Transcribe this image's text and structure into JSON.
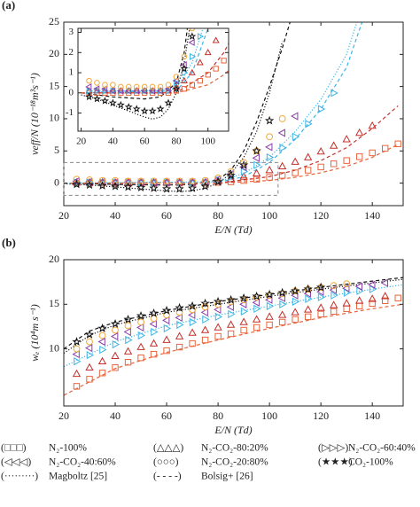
{
  "chart_data": [
    {
      "type": "scatter",
      "panel_label": "(a)",
      "xlabel": "E/N (Td)",
      "ylabel": "νeff/N (10⁻¹⁸m³s⁻¹)",
      "xlim": [
        20,
        152
      ],
      "ylim": [
        -3.5,
        25
      ],
      "xticks": [
        20,
        40,
        60,
        80,
        100,
        120,
        140
      ],
      "yticks": [
        0,
        5,
        10,
        15,
        20,
        25
      ],
      "series": [
        {
          "marker": "square",
          "color": "#e8643c",
          "x": [
            25,
            30,
            35,
            40,
            45,
            50,
            55,
            60,
            65,
            70,
            75,
            80,
            85,
            90,
            95,
            100,
            105,
            110,
            115,
            120,
            125,
            130,
            135,
            140,
            145,
            150
          ],
          "values": [
            0,
            0,
            0,
            0,
            0,
            0,
            0,
            0,
            0,
            0,
            0,
            0.1,
            0.2,
            0.4,
            0.6,
            0.9,
            1.2,
            1.6,
            2.0,
            2.5,
            3.0,
            3.5,
            4.1,
            4.7,
            5.4,
            6.1
          ]
        },
        {
          "marker": "triangle-up",
          "color": "#c4302b",
          "x": [
            25,
            30,
            35,
            40,
            45,
            50,
            55,
            60,
            65,
            70,
            75,
            80,
            85,
            90,
            95,
            100,
            105,
            110,
            115,
            120,
            125,
            130,
            135,
            140
          ],
          "values": [
            0.1,
            0.1,
            0.1,
            0.1,
            0.1,
            0.1,
            0.1,
            0.1,
            0.1,
            0.1,
            0.1,
            0.3,
            0.6,
            1.0,
            1.5,
            2.0,
            2.6,
            3.3,
            4.0,
            4.9,
            5.8,
            6.8,
            7.8,
            8.9
          ]
        },
        {
          "marker": "triangle-right",
          "color": "#3db5e6",
          "x": [
            25,
            30,
            35,
            40,
            45,
            50,
            55,
            60,
            65,
            70,
            75,
            80,
            85,
            90,
            95,
            100,
            105,
            110,
            115,
            120,
            125
          ],
          "values": [
            0.1,
            0.1,
            0.1,
            0.1,
            0.1,
            0.1,
            0.1,
            0.1,
            0.1,
            0.1,
            0.1,
            0.5,
            1.0,
            1.8,
            2.8,
            4.0,
            5.5,
            7.2,
            9.2,
            11.5,
            14.0
          ]
        },
        {
          "marker": "triangle-left",
          "color": "#8a3fa8",
          "x": [
            25,
            30,
            35,
            40,
            45,
            50,
            55,
            60,
            65,
            70,
            75,
            80,
            85,
            90,
            95,
            100,
            105,
            110
          ],
          "values": [
            0.3,
            0.2,
            0.2,
            0.1,
            0.1,
            0.1,
            0.1,
            0.1,
            0.1,
            0.1,
            0.2,
            0.6,
            1.4,
            2.5,
            3.9,
            5.6,
            7.8,
            10.4
          ]
        },
        {
          "marker": "circle",
          "color": "#f2a93b",
          "x": [
            25,
            30,
            35,
            40,
            45,
            50,
            55,
            60,
            65,
            70,
            75,
            80,
            85,
            90,
            95,
            100,
            105
          ],
          "values": [
            0.6,
            0.5,
            0.4,
            0.4,
            0.3,
            0.3,
            0.3,
            0.3,
            0.3,
            0.3,
            0.4,
            0.8,
            1.8,
            3.2,
            5.0,
            7.2,
            10.0
          ]
        },
        {
          "marker": "star",
          "color": "#111111",
          "x": [
            25,
            30,
            35,
            40,
            45,
            50,
            55,
            60,
            65,
            70,
            75,
            80,
            85,
            90,
            95,
            100
          ],
          "values": [
            -0.2,
            -0.3,
            -0.4,
            -0.5,
            -0.6,
            -0.7,
            -0.8,
            -0.9,
            -0.9,
            -0.8,
            -0.5,
            0.2,
            1.2,
            2.8,
            5.0,
            9.7
          ]
        }
      ],
      "curves": [
        {
          "style": "dotted",
          "color": "#111111",
          "x": [
            20,
            30,
            40,
            50,
            60,
            65,
            70,
            75,
            80,
            85,
            90,
            95,
            100,
            105
          ],
          "values": [
            -0.1,
            -0.3,
            -0.6,
            -0.9,
            -1.2,
            -1.3,
            -1.2,
            -0.8,
            0,
            1.5,
            4,
            8,
            14,
            22
          ]
        },
        {
          "style": "dashed",
          "color": "#111111",
          "x": [
            20,
            40,
            60,
            70,
            80,
            85,
            90,
            95,
            100,
            105,
            108
          ],
          "values": [
            0,
            -0.2,
            -0.3,
            -0.2,
            0.5,
            2,
            5,
            9.5,
            15,
            21,
            25
          ]
        },
        {
          "style": "dotted",
          "color": "#3db5e6",
          "x": [
            20,
            80,
            90,
            100,
            110,
            120,
            130,
            134
          ],
          "values": [
            0,
            0.2,
            1.5,
            4,
            8,
            13,
            20,
            25
          ]
        },
        {
          "style": "dashed",
          "color": "#3db5e6",
          "x": [
            20,
            80,
            90,
            100,
            110,
            120,
            130,
            136
          ],
          "values": [
            0,
            0.1,
            1,
            3.2,
            6.8,
            11.5,
            18,
            25
          ]
        },
        {
          "style": "dashed",
          "color": "#c4302b",
          "x": [
            20,
            80,
            100,
            110,
            120,
            130,
            140,
            150
          ],
          "values": [
            0,
            0,
            1.0,
            2,
            3.5,
            5.5,
            8.5,
            12
          ]
        },
        {
          "style": "dashed",
          "color": "#e8643c",
          "x": [
            20,
            80,
            100,
            110,
            120,
            130,
            140,
            150
          ],
          "values": [
            0,
            0,
            0.4,
            0.9,
            1.6,
            2.6,
            4,
            6
          ]
        }
      ]
    },
    {
      "type": "scatter",
      "panel_label": "(b)",
      "xlabel": "E/N (Td)",
      "ylabel": "wₑ (10⁴m s⁻¹)",
      "xlim": [
        20,
        152
      ],
      "ylim": [
        3.6,
        20
      ],
      "xticks": [
        20,
        40,
        60,
        80,
        100,
        120,
        140
      ],
      "yticks": [
        10,
        15,
        20
      ],
      "series": [
        {
          "marker": "square",
          "color": "#e8643c",
          "x": [
            25,
            30,
            35,
            40,
            45,
            50,
            55,
            60,
            65,
            70,
            75,
            80,
            85,
            90,
            95,
            100,
            105,
            110,
            115,
            120,
            125,
            130,
            135,
            140,
            145,
            150
          ],
          "values": [
            5.8,
            6.6,
            7.3,
            7.9,
            8.5,
            9.0,
            9.4,
            9.8,
            10.2,
            10.6,
            11.0,
            11.4,
            11.7,
            12.1,
            12.4,
            12.7,
            13.0,
            13.3,
            13.6,
            13.9,
            14.2,
            14.5,
            14.8,
            15.1,
            15.4,
            15.7
          ]
        },
        {
          "marker": "triangle-up",
          "color": "#c4302b",
          "x": [
            25,
            30,
            35,
            40,
            45,
            50,
            55,
            60,
            65,
            70,
            75,
            80,
            85,
            90,
            95,
            100,
            105,
            110,
            115,
            120,
            125,
            130,
            135,
            140,
            145
          ],
          "values": [
            7.2,
            7.9,
            8.6,
            9.2,
            9.7,
            10.2,
            10.6,
            11.0,
            11.4,
            11.8,
            12.1,
            12.4,
            12.7,
            13.0,
            13.3,
            13.6,
            13.8,
            14.1,
            14.4,
            14.6,
            14.9,
            15.1,
            15.4,
            15.6,
            15.9
          ]
        },
        {
          "marker": "triangle-right",
          "color": "#3db5e6",
          "x": [
            25,
            30,
            35,
            40,
            45,
            50,
            55,
            60,
            65,
            70,
            75,
            80,
            85,
            90,
            95,
            100,
            105,
            110,
            115,
            120,
            125,
            130,
            135,
            140
          ],
          "values": [
            8.6,
            9.3,
            9.9,
            10.5,
            11.0,
            11.5,
            11.9,
            12.3,
            12.7,
            13.0,
            13.3,
            13.6,
            13.9,
            14.2,
            14.5,
            14.8,
            15.0,
            15.3,
            15.6,
            15.8,
            16.0,
            16.3,
            16.5,
            16.7
          ]
        },
        {
          "marker": "triangle-left",
          "color": "#8a3fa8",
          "x": [
            25,
            30,
            35,
            40,
            45,
            50,
            55,
            60,
            65,
            70,
            75,
            80,
            85,
            90,
            95,
            100,
            105,
            110,
            115,
            120,
            125,
            130,
            135,
            140,
            145
          ],
          "values": [
            9.4,
            10.1,
            10.8,
            11.4,
            11.9,
            12.4,
            12.8,
            13.2,
            13.5,
            13.8,
            14.1,
            14.4,
            14.7,
            15.0,
            15.2,
            15.5,
            15.7,
            16.0,
            16.2,
            16.4,
            16.6,
            16.8,
            17.0,
            17.2,
            17.4
          ]
        },
        {
          "marker": "circle",
          "color": "#f2a93b",
          "x": [
            25,
            30,
            35,
            40,
            45,
            50,
            55,
            60,
            65,
            70,
            75,
            80,
            85,
            90,
            95,
            100,
            105,
            110,
            115,
            120,
            125,
            130
          ],
          "values": [
            10.0,
            10.8,
            11.5,
            12.1,
            12.6,
            13.0,
            13.4,
            13.8,
            14.1,
            14.4,
            14.7,
            15.0,
            15.3,
            15.5,
            15.8,
            16.0,
            16.2,
            16.5,
            16.7,
            16.9,
            17.1,
            17.3
          ]
        },
        {
          "marker": "star",
          "color": "#111111",
          "x": [
            25,
            30,
            35,
            40,
            45,
            50,
            55,
            60,
            65,
            70,
            75,
            80,
            85,
            90,
            95,
            100,
            105,
            110,
            115,
            120
          ],
          "values": [
            10.8,
            11.6,
            12.3,
            12.8,
            13.3,
            13.7,
            14.0,
            14.3,
            14.6,
            14.8,
            15.1,
            15.3,
            15.5,
            15.7,
            15.9,
            16.1,
            16.3,
            16.5,
            16.7,
            16.9
          ]
        }
      ],
      "curves": [
        {
          "style": "dashed",
          "color": "#111111",
          "x": [
            20,
            30,
            40,
            60,
            80,
            100,
            120,
            140,
            152
          ],
          "values": [
            10,
            12,
            13,
            14.3,
            15.3,
            16.1,
            16.9,
            17.6,
            18
          ]
        },
        {
          "style": "dotted",
          "color": "#111111",
          "x": [
            20,
            30,
            40,
            60,
            80,
            100,
            120,
            140,
            152
          ],
          "values": [
            9.5,
            11.5,
            12.7,
            14.1,
            15.0,
            15.9,
            16.7,
            17.4,
            17.8
          ]
        },
        {
          "style": "dotted",
          "color": "#3db5e6",
          "x": [
            20,
            40,
            60,
            80,
            100,
            120,
            140,
            152
          ],
          "values": [
            8,
            10.8,
            12.6,
            13.8,
            14.8,
            15.8,
            16.7,
            17.2
          ]
        },
        {
          "style": "dashed",
          "color": "#e8643c",
          "x": [
            20,
            40,
            60,
            80,
            100,
            120,
            140,
            152
          ],
          "values": [
            4.8,
            7.8,
            9.6,
            11,
            12.3,
            13.5,
            14.5,
            15
          ]
        }
      ]
    },
    {
      "type": "scatter",
      "xlim": [
        18,
        113
      ],
      "ylim": [
        -1.9,
        3.2
      ],
      "xticks": [
        20,
        40,
        60,
        80,
        100
      ],
      "yticks": [
        -1,
        0,
        1,
        2,
        3
      ]
    }
  ],
  "legend": [
    {
      "symbol": "(□□□)",
      "label": "N₂-100%",
      "color": "#e8643c"
    },
    {
      "symbol": "(△△△)",
      "label": "N₂-CO₂-80:20%",
      "color": "#c4302b"
    },
    {
      "symbol": "(▷▷▷)",
      "label": "N₂-CO₂-60:40%",
      "color": "#3db5e6"
    },
    {
      "symbol": "(◁◁◁)",
      "label": "N₂-CO₂-40:60%",
      "color": "#8a3fa8"
    },
    {
      "symbol": "(○○○)",
      "label": "N₂-CO₂-20:80%",
      "color": "#f2a93b"
    },
    {
      "symbol": "(★★★)",
      "label": "CO₂-100%",
      "color": "#111111"
    },
    {
      "symbol": "(·········)",
      "label": "Magboltz [25]",
      "color": "#111111"
    },
    {
      "symbol": "(- - - -)",
      "label": "Bolsig+ [26]",
      "color": "#111111"
    }
  ]
}
